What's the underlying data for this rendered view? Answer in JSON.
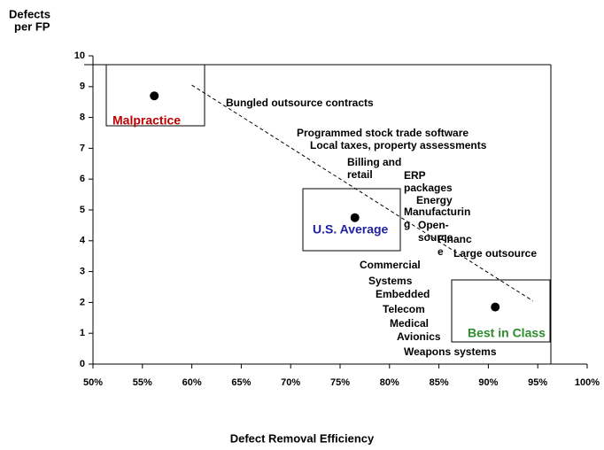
{
  "chart_data": {
    "type": "scatter",
    "ylabel": [
      "Defects",
      "per FP"
    ],
    "xlabel": "Defect Removal Efficiency",
    "xlim": [
      50,
      100
    ],
    "ylim": [
      0,
      10
    ],
    "xticks": [
      {
        "value": 50,
        "label": "50%"
      },
      {
        "value": 55,
        "label": "55%"
      },
      {
        "value": 60,
        "label": "60%"
      },
      {
        "value": 65,
        "label": "65%"
      },
      {
        "value": 70,
        "label": "70%"
      },
      {
        "value": 75,
        "label": "75%"
      },
      {
        "value": 80,
        "label": "80%"
      },
      {
        "value": 85,
        "label": "85%"
      },
      {
        "value": 90,
        "label": "90%"
      },
      {
        "value": 95,
        "label": "95%"
      },
      {
        "value": 100,
        "label": "100%"
      }
    ],
    "yticks": [
      0,
      1,
      2,
      3,
      4,
      5,
      6,
      7,
      8,
      9,
      10
    ],
    "x": [
      56.2,
      76.5,
      90.7
    ],
    "values": [
      8.7,
      4.75,
      1.85
    ],
    "color": "#000000",
    "point_labels": [
      "Malpractice",
      "U.S. Average",
      "Best in Class"
    ],
    "point_label_colors": [
      "#c00000",
      "#1f1f9f",
      "#2e8b2e"
    ],
    "trend": {
      "x": [
        60,
        94.5
      ],
      "values": [
        9.05,
        2.05
      ]
    },
    "annotations": [
      "Bungled outsource contracts",
      "Programmed stock trade software",
      "Local taxes, property assessments",
      "Billing and",
      "retail",
      "ERP",
      "packages",
      "Energy",
      "Manufacturin",
      "g",
      "Open-",
      "source",
      "Financ",
      "e",
      "Large outsource",
      "Commercial",
      "Systems",
      "Embedded",
      "Telecom",
      "Medical",
      "Avionics",
      "Weapons systems"
    ]
  }
}
